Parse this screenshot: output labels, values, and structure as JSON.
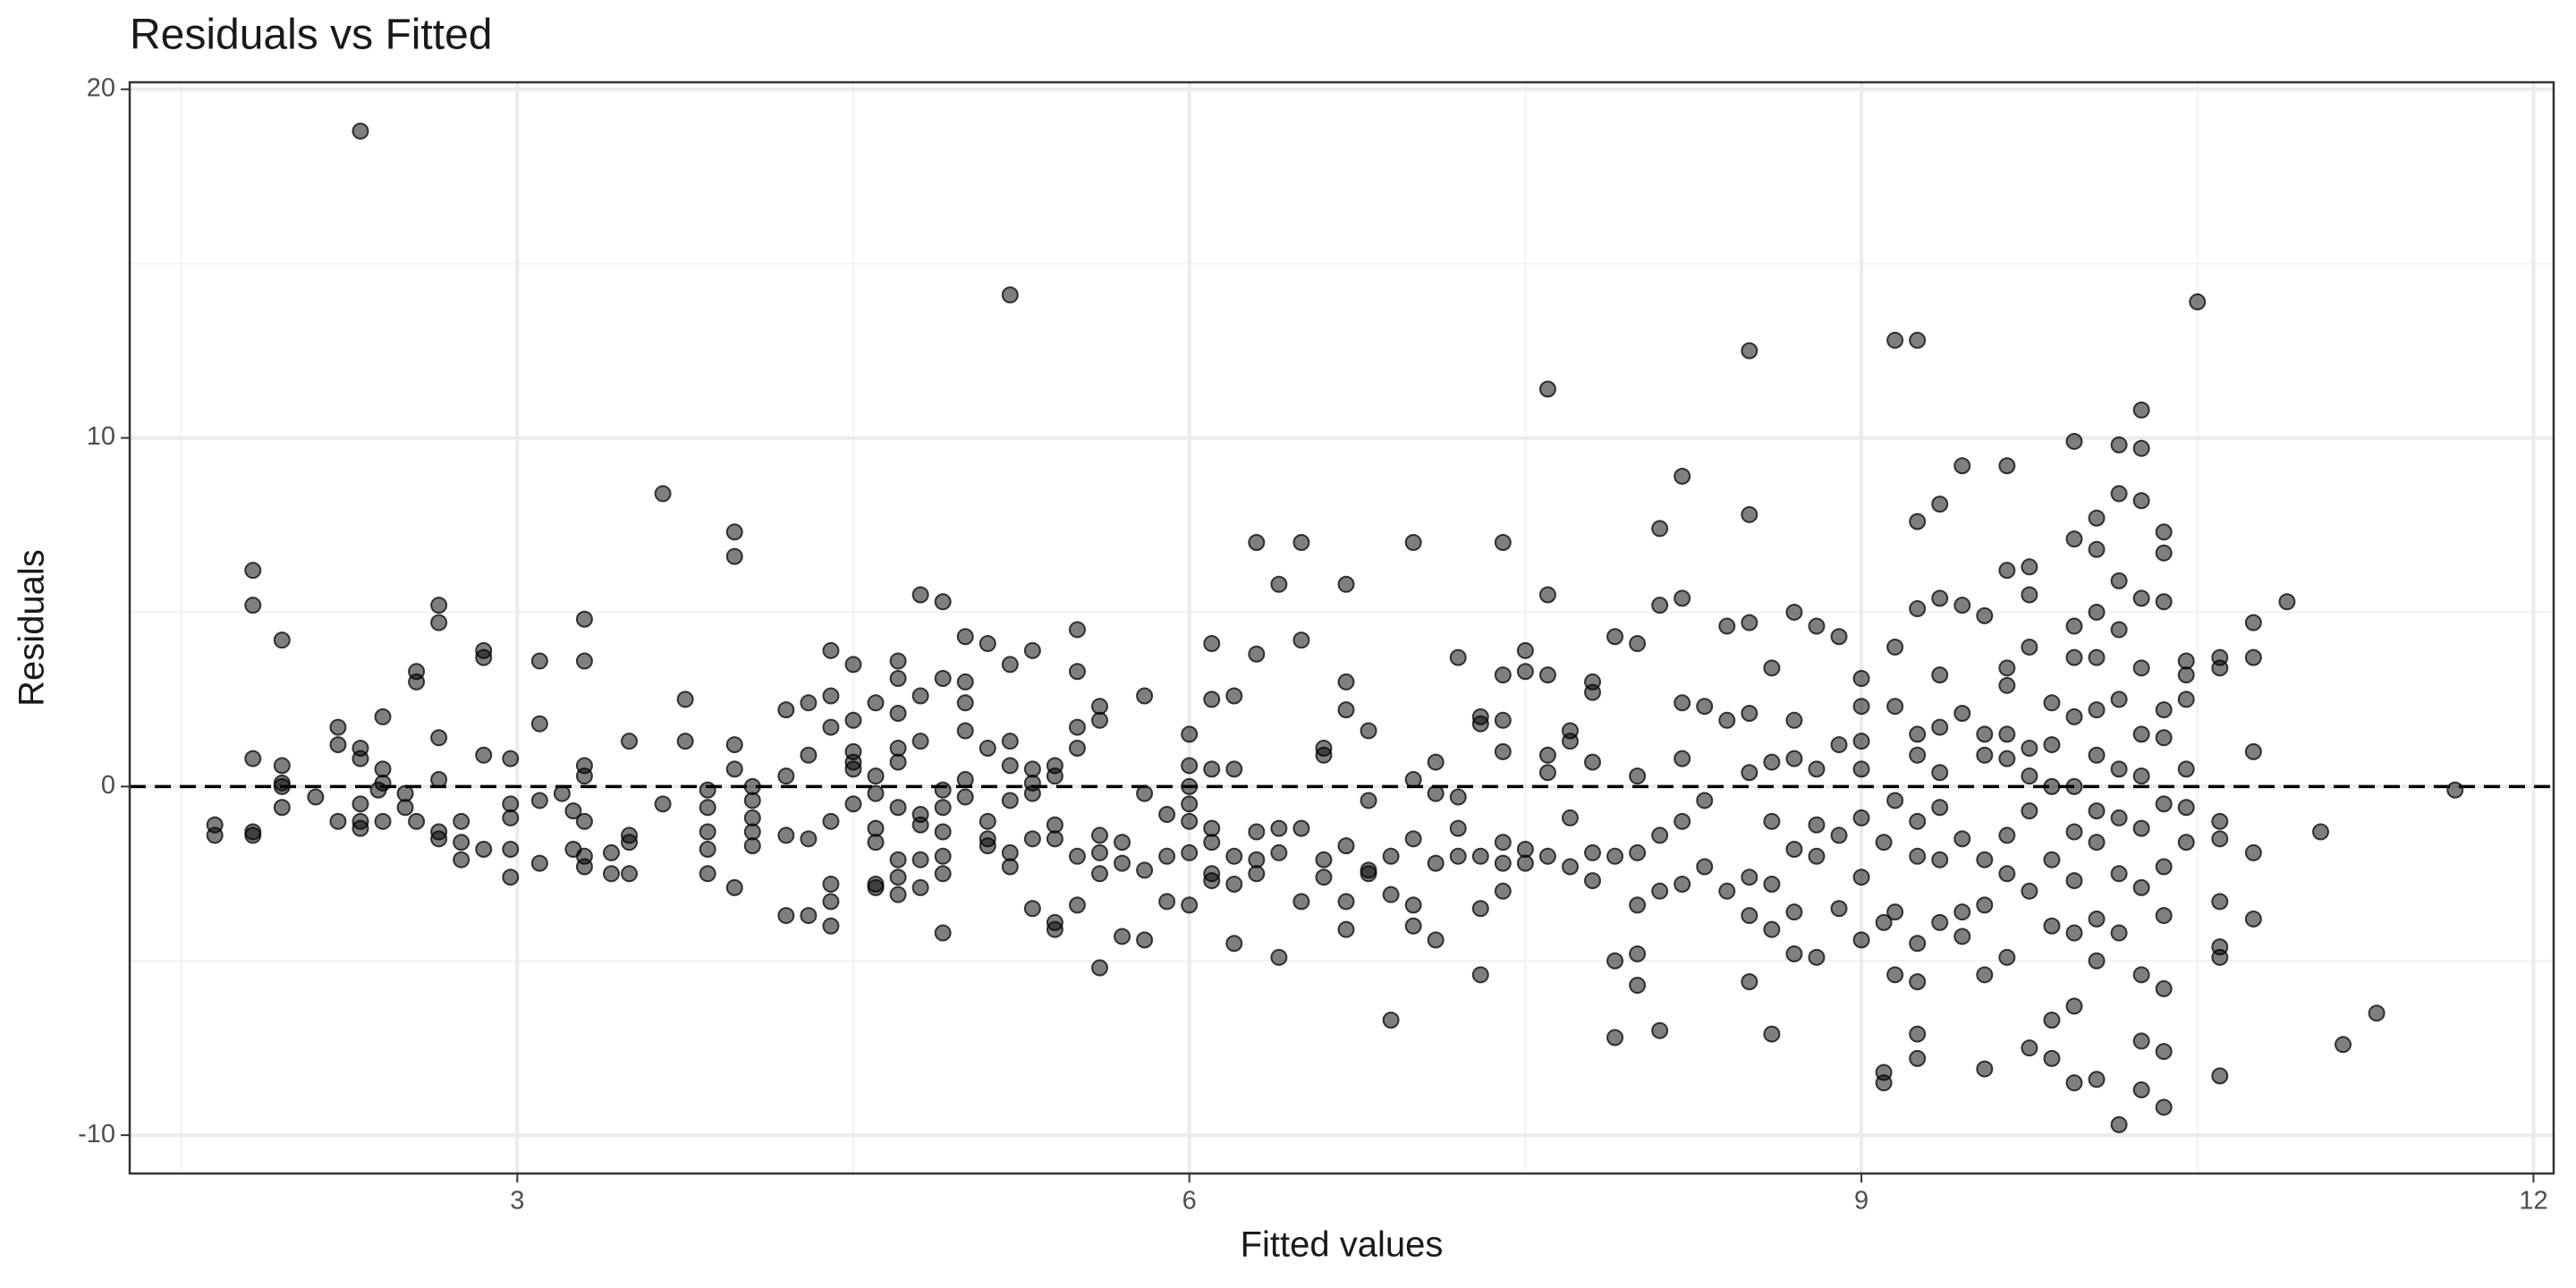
{
  "chart_data": {
    "type": "scatter",
    "title": "Residuals vs Fitted",
    "x_label": "Fitted values",
    "y_label": "Residuals",
    "color": "#000000",
    "opacity": 0.5,
    "xlim": [
      1.27,
      12.09
    ],
    "ylim": [
      -11.1,
      20.2
    ],
    "xticks": [
      3,
      6,
      9,
      12
    ],
    "yticks": [
      -10,
      0,
      10,
      20
    ],
    "x_minor_grid": [
      1.5,
      4.5,
      7.5,
      10.5
    ],
    "y_minor_grid": [
      -5,
      5,
      15
    ],
    "grid": true,
    "hline": 0,
    "x": [
      1.65,
      1.65,
      1.82,
      1.82,
      1.82,
      1.82,
      1.82,
      1.95,
      1.95,
      1.95,
      1.95,
      1.95,
      2.1,
      2.2,
      2.2,
      2.2,
      2.3,
      2.3,
      2.3,
      2.3,
      2.3,
      2.3,
      2.38,
      2.4,
      2.4,
      2.4,
      2.4,
      2.5,
      2.5,
      2.55,
      2.55,
      2.55,
      2.65,
      2.65,
      2.65,
      2.65,
      2.65,
      2.65,
      2.75,
      2.75,
      2.75,
      2.85,
      2.85,
      2.85,
      2.85,
      2.97,
      2.97,
      2.97,
      2.97,
      2.97,
      3.1,
      3.1,
      3.1,
      3.1,
      3.2,
      3.25,
      3.25,
      3.3,
      3.3,
      3.3,
      3.3,
      3.3,
      3.3,
      3.3,
      3.42,
      3.42,
      3.5,
      3.5,
      3.5,
      3.5,
      3.65,
      3.65,
      3.75,
      3.75,
      3.85,
      3.85,
      3.85,
      3.85,
      3.85,
      3.97,
      3.97,
      3.97,
      3.97,
      3.97,
      4.05,
      4.05,
      4.05,
      4.05,
      4.05,
      4.2,
      4.2,
      4.2,
      4.2,
      4.3,
      4.3,
      4.3,
      4.3,
      4.4,
      4.4,
      4.4,
      4.4,
      4.4,
      4.4,
      4.4,
      4.5,
      4.5,
      4.5,
      4.5,
      4.5,
      4.5,
      4.6,
      4.6,
      4.6,
      4.6,
      4.6,
      4.6,
      4.6,
      4.7,
      4.7,
      4.7,
      4.7,
      4.7,
      4.7,
      4.7,
      4.7,
      4.7,
      4.8,
      4.8,
      4.8,
      4.8,
      4.8,
      4.8,
      4.8,
      4.9,
      4.9,
      4.9,
      4.9,
      4.9,
      4.9,
      4.9,
      4.9,
      5.0,
      5.0,
      5.0,
      5.0,
      5.0,
      5.0,
      5.1,
      5.1,
      5.1,
      5.1,
      5.1,
      5.2,
      5.2,
      5.2,
      5.2,
      5.2,
      5.2,
      5.2,
      5.3,
      5.3,
      5.3,
      5.3,
      5.3,
      5.3,
      5.4,
      5.4,
      5.4,
      5.4,
      5.4,
      5.4,
      5.5,
      5.5,
      5.5,
      5.5,
      5.5,
      5.5,
      5.6,
      5.6,
      5.6,
      5.6,
      5.6,
      5.6,
      5.7,
      5.7,
      5.7,
      5.8,
      5.8,
      5.8,
      5.8,
      5.9,
      5.9,
      5.9,
      6.0,
      6.0,
      6.0,
      6.0,
      6.0,
      6.0,
      6.0,
      6.1,
      6.1,
      6.1,
      6.1,
      6.1,
      6.1,
      6.1,
      6.2,
      6.2,
      6.2,
      6.2,
      6.2,
      6.3,
      6.3,
      6.3,
      6.3,
      6.3,
      6.4,
      6.4,
      6.4,
      6.4,
      6.5,
      6.5,
      6.5,
      6.5,
      6.6,
      6.6,
      6.6,
      6.6,
      6.7,
      6.7,
      6.7,
      6.7,
      6.7,
      6.7,
      6.8,
      6.8,
      6.8,
      6.8,
      6.9,
      6.9,
      6.9,
      7.0,
      7.0,
      7.0,
      7.0,
      7.0,
      7.1,
      7.1,
      7.1,
      7.1,
      7.2,
      7.2,
      7.2,
      7.2,
      7.3,
      7.3,
      7.3,
      7.3,
      7.3,
      7.4,
      7.4,
      7.4,
      7.4,
      7.4,
      7.4,
      7.4,
      7.5,
      7.5,
      7.5,
      7.5,
      7.6,
      7.6,
      7.6,
      7.6,
      7.6,
      7.6,
      7.7,
      7.7,
      7.7,
      7.7,
      7.8,
      7.8,
      7.8,
      7.8,
      7.8,
      7.9,
      7.9,
      7.9,
      7.9,
      8.0,
      8.0,
      8.0,
      8.0,
      8.0,
      8.0,
      8.1,
      8.1,
      8.1,
      8.1,
      8.1,
      8.2,
      8.2,
      8.2,
      8.2,
      8.2,
      8.2,
      8.3,
      8.3,
      8.3,
      8.4,
      8.4,
      8.4,
      8.5,
      8.5,
      8.5,
      8.5,
      8.5,
      8.5,
      8.5,
      8.5,
      8.6,
      8.6,
      8.6,
      8.6,
      8.6,
      8.6,
      8.7,
      8.7,
      8.7,
      8.7,
      8.7,
      8.7,
      8.8,
      8.8,
      8.8,
      8.8,
      8.8,
      8.9,
      8.9,
      8.9,
      8.9,
      9.0,
      9.0,
      9.0,
      9.0,
      9.0,
      9.0,
      9.0,
      9.1,
      9.1,
      9.1,
      9.1,
      9.15,
      9.15,
      9.15,
      9.15,
      9.15,
      9.15,
      9.25,
      9.25,
      9.25,
      9.25,
      9.25,
      9.25,
      9.25,
      9.25,
      9.25,
      9.25,
      9.25,
      9.35,
      9.35,
      9.35,
      9.35,
      9.35,
      9.35,
      9.35,
      9.35,
      9.45,
      9.45,
      9.45,
      9.45,
      9.45,
      9.45,
      9.55,
      9.55,
      9.55,
      9.55,
      9.55,
      9.55,
      9.55,
      9.65,
      9.65,
      9.65,
      9.65,
      9.65,
      9.65,
      9.65,
      9.65,
      9.65,
      9.75,
      9.75,
      9.75,
      9.75,
      9.75,
      9.75,
      9.75,
      9.75,
      9.85,
      9.85,
      9.85,
      9.85,
      9.85,
      9.85,
      9.85,
      9.95,
      9.95,
      9.95,
      9.95,
      9.95,
      9.95,
      9.95,
      9.95,
      9.95,
      9.95,
      9.95,
      10.05,
      10.05,
      10.05,
      10.05,
      10.05,
      10.05,
      10.05,
      10.05,
      10.05,
      10.05,
      10.05,
      10.15,
      10.15,
      10.15,
      10.15,
      10.15,
      10.15,
      10.15,
      10.15,
      10.15,
      10.15,
      10.25,
      10.25,
      10.25,
      10.25,
      10.25,
      10.25,
      10.25,
      10.25,
      10.25,
      10.25,
      10.25,
      10.25,
      10.35,
      10.35,
      10.35,
      10.35,
      10.35,
      10.35,
      10.35,
      10.35,
      10.35,
      10.35,
      10.35,
      10.45,
      10.45,
      10.45,
      10.45,
      10.45,
      10.45,
      10.5,
      10.6,
      10.6,
      10.6,
      10.6,
      10.6,
      10.6,
      10.6,
      10.6,
      10.75,
      10.75,
      10.75,
      10.75,
      10.75,
      10.9,
      11.05,
      11.15,
      11.3,
      11.65
    ],
    "values": [
      -1.1,
      -1.4,
      -1.3,
      -1.4,
      0.8,
      5.2,
      6.2,
      4.2,
      0.6,
      0.1,
      -0.6,
      0,
      -0.3,
      1.7,
      -1.0,
      1.2,
      18.8,
      0.8,
      1.1,
      -0.5,
      -1.0,
      -1.2,
      -0.1,
      0.5,
      2.0,
      -1.0,
      0.1,
      -0.2,
      -0.6,
      3.0,
      3.3,
      -1.0,
      4.7,
      5.2,
      1.4,
      0.2,
      -1.3,
      -1.5,
      -1.0,
      -1.6,
      -2.1,
      3.7,
      3.9,
      0.9,
      -1.8,
      0.8,
      -0.5,
      -0.9,
      -1.8,
      -2.6,
      3.6,
      1.8,
      -0.4,
      -2.2,
      -0.2,
      -0.7,
      -1.8,
      4.8,
      3.6,
      0.6,
      0.3,
      -1.0,
      -2.0,
      -2.3,
      -2.5,
      -1.9,
      1.3,
      -1.6,
      -2.5,
      -1.4,
      8.4,
      -0.5,
      2.5,
      1.3,
      -0.1,
      -0.6,
      -1.3,
      -1.8,
      -2.5,
      7.3,
      6.6,
      1.2,
      0.5,
      -2.9,
      0.0,
      -0.4,
      -0.9,
      -1.3,
      -1.7,
      2.2,
      0.3,
      -1.4,
      -3.7,
      2.4,
      0.9,
      -1.5,
      -3.7,
      3.9,
      2.6,
      1.7,
      -1.0,
      -2.8,
      -3.3,
      -4.0,
      3.5,
      1.9,
      1.0,
      0.7,
      0.5,
      -0.5,
      2.4,
      0.3,
      -0.2,
      -1.2,
      -1.6,
      -2.8,
      -2.9,
      3.6,
      3.1,
      2.1,
      1.1,
      0.7,
      -0.6,
      -2.1,
      -2.6,
      -3.1,
      5.5,
      2.6,
      1.3,
      -0.8,
      -1.1,
      -2.9,
      -2.1,
      5.3,
      3.1,
      -0.1,
      -0.6,
      -1.3,
      -2.0,
      -2.5,
      -4.2,
      4.3,
      3.0,
      2.4,
      1.6,
      0.2,
      -0.3,
      4.1,
      1.1,
      -1.0,
      -1.5,
      -1.7,
      14.1,
      3.5,
      1.3,
      0.6,
      -0.4,
      -1.9,
      -2.3,
      3.9,
      0.5,
      0.1,
      -0.2,
      -1.5,
      -3.5,
      0.6,
      0.3,
      -1.1,
      -1.5,
      -3.9,
      -4.1,
      4.5,
      3.3,
      1.7,
      1.1,
      -2.0,
      -3.4,
      2.3,
      1.9,
      -1.4,
      -1.9,
      -2.5,
      -5.2,
      -1.6,
      -4.3,
      -2.2,
      2.6,
      -0.2,
      -2.4,
      -4.4,
      -0.8,
      -2.0,
      -3.3,
      1.5,
      0.6,
      0.0,
      -0.5,
      -1.0,
      -1.9,
      -3.4,
      4.1,
      2.5,
      0.5,
      -1.2,
      -1.6,
      -2.5,
      -2.7,
      2.6,
      0.5,
      -2.0,
      -2.8,
      -4.5,
      7.0,
      3.8,
      -1.3,
      -2.1,
      -2.5,
      5.8,
      -1.2,
      -1.9,
      -4.9,
      7.0,
      4.2,
      -1.2,
      -3.3,
      1.1,
      0.9,
      -2.1,
      -2.6,
      5.8,
      3.0,
      2.2,
      -1.7,
      -3.3,
      -4.1,
      1.6,
      -0.4,
      -2.5,
      -2.4,
      -2.0,
      -3.1,
      -6.7,
      7.0,
      0.2,
      -1.5,
      -3.4,
      -4.0,
      0.7,
      -0.2,
      -2.2,
      -4.4,
      3.7,
      -0.3,
      -1.2,
      -2.0,
      2.0,
      1.8,
      -2.0,
      -3.5,
      -5.4,
      7.0,
      3.2,
      1.9,
      1.0,
      -1.6,
      -2.2,
      -3.0,
      3.9,
      3.3,
      -1.8,
      -2.2,
      11.4,
      5.5,
      3.2,
      0.9,
      0.4,
      -2.0,
      1.6,
      1.3,
      -0.9,
      -2.3,
      3.0,
      2.7,
      0.7,
      -1.9,
      -2.7,
      4.3,
      -2.0,
      -5.0,
      -7.2,
      4.1,
      0.3,
      -1.9,
      -3.4,
      -4.8,
      -5.7,
      7.4,
      5.2,
      -1.4,
      -3.0,
      -7.0,
      8.9,
      5.4,
      2.4,
      0.8,
      -1.0,
      -2.8,
      2.3,
      -0.4,
      -2.3,
      4.6,
      1.9,
      -3.0,
      12.5,
      7.8,
      4.7,
      2.1,
      0.4,
      -2.6,
      -3.7,
      -5.6,
      3.4,
      0.7,
      -1.0,
      -2.8,
      -4.1,
      -7.1,
      5.0,
      1.9,
      0.8,
      -1.8,
      -3.6,
      -4.8,
      4.6,
      0.5,
      -1.1,
      -2.0,
      -4.9,
      4.3,
      1.2,
      -1.4,
      -3.5,
      3.1,
      2.3,
      1.3,
      0.5,
      -0.9,
      -2.6,
      -4.4,
      -1.6,
      -3.9,
      -8.2,
      -8.5,
      12.8,
      4.0,
      2.3,
      -0.4,
      -3.6,
      -5.4,
      12.8,
      7.6,
      5.1,
      1.5,
      0.9,
      -1.0,
      -2.0,
      -4.5,
      -5.6,
      -7.1,
      -7.8,
      8.1,
      5.4,
      3.2,
      1.7,
      0.4,
      -0.6,
      -2.1,
      -3.9,
      9.2,
      5.2,
      2.1,
      -1.5,
      -3.6,
      -4.3,
      4.9,
      1.5,
      0.9,
      -2.1,
      -3.4,
      -5.4,
      -8.1,
      9.2,
      6.2,
      3.4,
      2.9,
      1.5,
      0.8,
      -1.4,
      -2.5,
      -4.9,
      6.3,
      5.5,
      4.0,
      1.1,
      0.3,
      -0.7,
      -3.0,
      -7.5,
      2.4,
      1.2,
      0.0,
      -2.1,
      -4.0,
      -6.7,
      -7.8,
      9.9,
      7.1,
      4.6,
      3.7,
      2.0,
      0.0,
      -1.3,
      -2.7,
      -4.2,
      -6.3,
      -8.5,
      7.7,
      6.8,
      5.0,
      3.7,
      2.2,
      0.9,
      -0.7,
      -1.6,
      -3.8,
      -5.0,
      -8.4,
      9.8,
      8.4,
      5.9,
      4.5,
      2.5,
      0.5,
      -0.9,
      -2.5,
      -4.2,
      -9.7,
      10.8,
      9.7,
      8.2,
      5.4,
      3.4,
      1.5,
      0.3,
      -1.2,
      -2.9,
      -5.4,
      -7.3,
      -8.7,
      7.3,
      6.7,
      5.3,
      2.2,
      1.4,
      -0.5,
      -2.3,
      -3.7,
      -5.8,
      -7.6,
      -9.2,
      3.6,
      3.2,
      2.5,
      0.5,
      -0.6,
      -1.6,
      13.9,
      3.7,
      3.4,
      -1.0,
      -1.5,
      -3.3,
      -4.6,
      -4.9,
      -8.3,
      4.7,
      3.7,
      1.0,
      -1.9,
      -3.8,
      5.3,
      -1.3,
      -7.4,
      -6.5,
      -0.1
    ]
  }
}
